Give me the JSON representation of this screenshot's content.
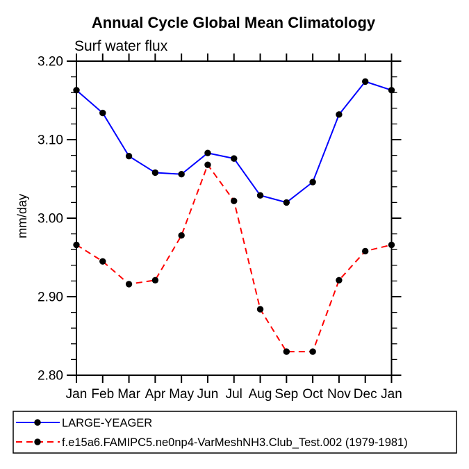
{
  "chart_data": {
    "type": "line",
    "title": "Annual Cycle Global Mean Climatology",
    "subtitle": "Surf water flux",
    "xlabel": "",
    "ylabel": "mm/day",
    "categories": [
      "Jan",
      "Feb",
      "Mar",
      "Apr",
      "May",
      "Jun",
      "Jul",
      "Aug",
      "Sep",
      "Oct",
      "Nov",
      "Dec",
      "Jan"
    ],
    "series": [
      {
        "name": "LARGE-YEAGER",
        "color": "#0000ff",
        "line_style": "solid",
        "marker": "filled-circle",
        "marker_color": "#000000",
        "values": [
          3.163,
          3.134,
          3.079,
          3.058,
          3.056,
          3.083,
          3.076,
          3.029,
          3.02,
          3.046,
          3.132,
          3.174,
          3.163
        ]
      },
      {
        "name": "f.e15a6.FAMIPC5.ne0np4-VarMeshNH3.Club_Test.002 (1979-1981)",
        "color": "#ff0000",
        "line_style": "dashed",
        "marker": "filled-circle",
        "marker_color": "#000000",
        "values": [
          2.966,
          2.945,
          2.916,
          2.921,
          2.978,
          3.068,
          3.022,
          2.884,
          2.83,
          2.83,
          2.921,
          2.958,
          2.966
        ]
      }
    ],
    "ylim": [
      2.8,
      3.2
    ],
    "y_major_ticks": [
      {
        "value": 3.2,
        "label": "3.20"
      },
      {
        "value": 3.1,
        "label": "3.10"
      },
      {
        "value": 3.0,
        "label": "3.00"
      },
      {
        "value": 2.9,
        "label": "2.90"
      },
      {
        "value": 2.8,
        "label": "2.80"
      }
    ],
    "y_minor_step": 0.02,
    "grid": false,
    "ticks": "outward-all-sides",
    "legend_position": "bottom-left-box"
  }
}
